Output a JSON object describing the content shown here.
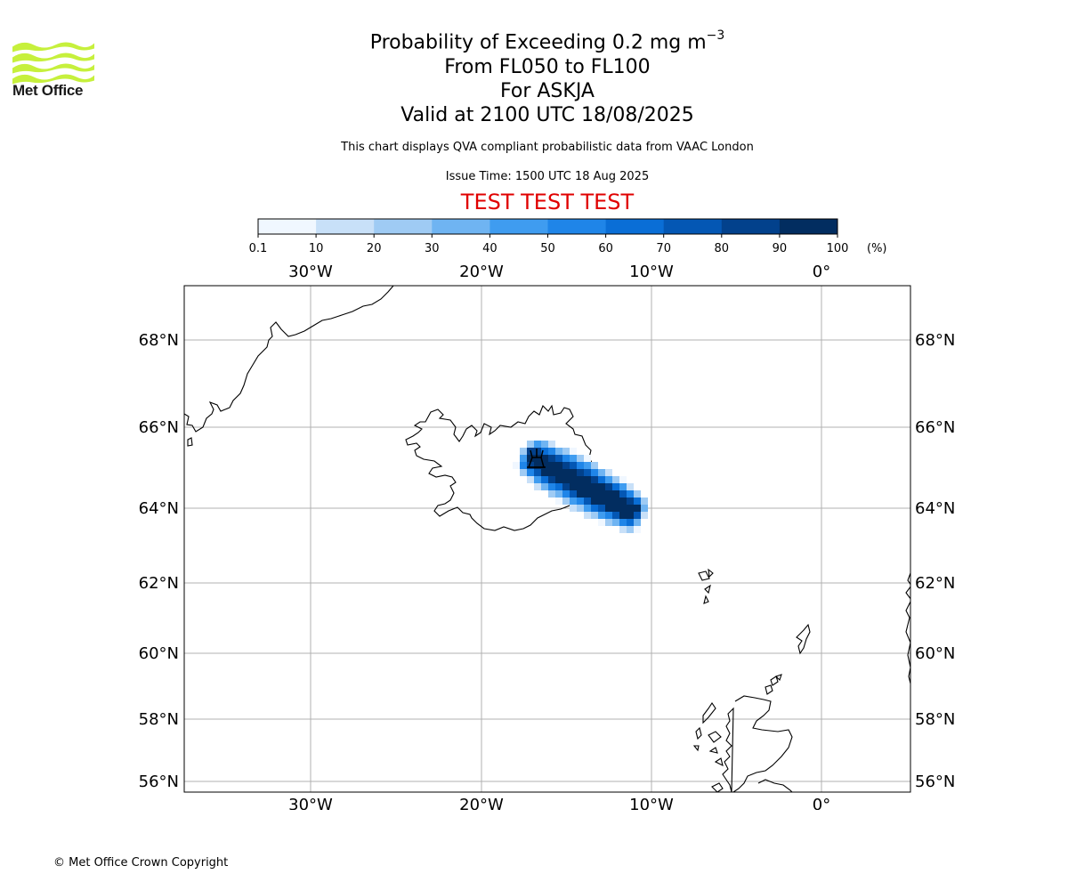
{
  "header": {
    "logo_text": "Met Office",
    "title_main": "Probability of Exceeding 0.2 mg m",
    "title_sup": "−3",
    "level_range": "From FL050 to FL100",
    "volcano": "For ASKJA",
    "valid_time": "Valid at 2100 UTC 18/08/2025",
    "note": "This chart displays QVA compliant probabilistic data from VAAC London",
    "issue_time": "Issue Time: 1500 UTC 18 Aug 2025",
    "test_banner": "TEST TEST TEST"
  },
  "colorbar": {
    "ticks": [
      "0.1",
      "10",
      "20",
      "30",
      "40",
      "50",
      "60",
      "70",
      "80",
      "90",
      "100"
    ],
    "unit": "(%)",
    "colors": [
      "#f0f7ff",
      "#c8e0f8",
      "#9fcbf4",
      "#6fb4f2",
      "#3f9cf0",
      "#1f85e8",
      "#0a6ed6",
      "#0457b4",
      "#02418c",
      "#022d60"
    ]
  },
  "map": {
    "lon_ticks": [
      "30°W",
      "20°W",
      "10°W",
      "0°"
    ],
    "lat_ticks": [
      "68°N",
      "66°N",
      "64°N",
      "62°N",
      "60°N",
      "58°N",
      "56°N"
    ],
    "volcano_marker": "volcano-icon",
    "plume_color_max": "#022d60"
  },
  "footer": {
    "copyright": "© Met Office Crown Copyright"
  }
}
